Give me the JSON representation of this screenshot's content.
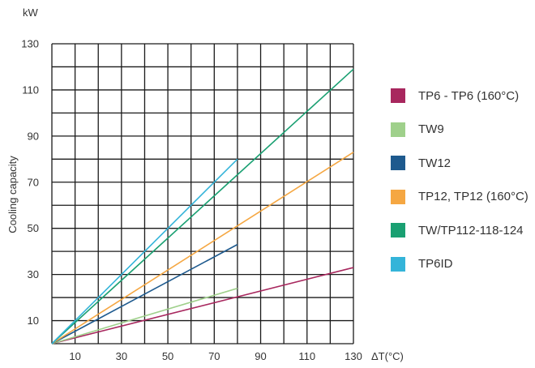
{
  "chart_data": {
    "type": "line",
    "ylabel": "Cooling capacity",
    "yunit": "kW",
    "xlabel": "ΔT(°C)",
    "xlim": [
      0,
      130
    ],
    "ylim": [
      0,
      130
    ],
    "xticks": [
      10,
      30,
      50,
      70,
      90,
      110,
      130
    ],
    "yticks": [
      10,
      30,
      50,
      70,
      90,
      110,
      130
    ],
    "grid": true,
    "legend_position": "right",
    "series": [
      {
        "name": "TP6 - TP6 (160°C)",
        "color": "#a8275e",
        "x": [
          0,
          130
        ],
        "y": [
          0,
          33
        ]
      },
      {
        "name": "TW9",
        "color": "#9fd08b",
        "x": [
          0,
          80
        ],
        "y": [
          0,
          24
        ]
      },
      {
        "name": "TW12",
        "color": "#1e5a8e",
        "x": [
          0,
          80
        ],
        "y": [
          0,
          43
        ]
      },
      {
        "name": "TP12, TP12 (160°C)",
        "color": "#f5a742",
        "x": [
          0,
          130
        ],
        "y": [
          0,
          83
        ]
      },
      {
        "name": "TW/TP112-118-124",
        "color": "#1aa072",
        "x": [
          0,
          130
        ],
        "y": [
          0,
          119
        ]
      },
      {
        "name": "TP6ID",
        "color": "#34b4d9",
        "x": [
          0,
          80
        ],
        "y": [
          0,
          80
        ]
      }
    ]
  }
}
